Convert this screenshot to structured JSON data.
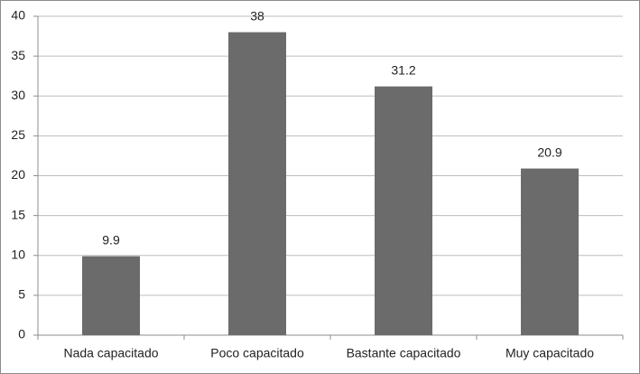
{
  "chart_data": {
    "type": "bar",
    "categories": [
      "Nada capacitado",
      "Poco capacitado",
      "Bastante capacitado",
      "Muy capacitado"
    ],
    "values": [
      9.9,
      38,
      31.2,
      20.9
    ],
    "color": "#6b6b6b",
    "ylim": [
      0,
      40
    ],
    "yticks": [
      0,
      5,
      10,
      15,
      20,
      25,
      30,
      35,
      40
    ],
    "grid": true
  }
}
